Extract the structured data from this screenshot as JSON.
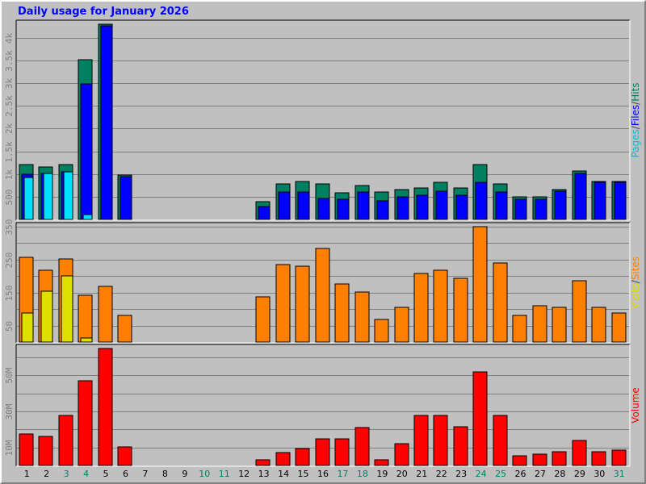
{
  "chart_data": {
    "type": "bar",
    "title": "Daily usage for January 2026",
    "days": [
      "1",
      "2",
      "3",
      "4",
      "5",
      "6",
      "7",
      "8",
      "9",
      "10",
      "11",
      "12",
      "13",
      "14",
      "15",
      "16",
      "17",
      "18",
      "19",
      "20",
      "21",
      "22",
      "23",
      "24",
      "25",
      "26",
      "27",
      "28",
      "29",
      "30",
      "31"
    ],
    "weekend_days": [
      "3",
      "4",
      "10",
      "11",
      "17",
      "18",
      "24",
      "25",
      "31"
    ],
    "panels": [
      {
        "id": "hits",
        "ylim": [
          0,
          4300
        ],
        "yticks": [
          500,
          1000,
          1500,
          2000,
          2500,
          3000,
          3500,
          4000
        ],
        "ytick_labels": [
          "500",
          "1k",
          "1.5k",
          "2k",
          "2.5k",
          "3k",
          "3.5k",
          "4k"
        ],
        "ylabel_parts": [
          {
            "text": "Pages",
            "color": "#00c0d0"
          },
          {
            "text": "/",
            "color": "#404040"
          },
          {
            "text": "Files",
            "color": "#0000ff"
          },
          {
            "text": "/",
            "color": "#404040"
          },
          {
            "text": "Hits",
            "color": "#008060"
          }
        ],
        "series": [
          {
            "name": "Hits",
            "color": "#008060",
            "values": [
              1200,
              1150,
              1200,
              3520,
              4300,
              980,
              0,
              0,
              0,
              0,
              0,
              0,
              390,
              790,
              840,
              780,
              590,
              750,
              600,
              650,
              700,
              820,
              700,
              1210,
              790,
              490,
              490,
              650,
              1070,
              840,
              840
            ]
          },
          {
            "name": "Files",
            "color": "#0000ff",
            "values": [
              1000,
              1020,
              1040,
              2980,
              4260,
              950,
              0,
              0,
              0,
              0,
              0,
              0,
              280,
              610,
              610,
              470,
              450,
              610,
              400,
              490,
              530,
              630,
              530,
              810,
              610,
              450,
              450,
              630,
              1020,
              810,
              810
            ]
          },
          {
            "name": "Pages",
            "color": "#00e0ff",
            "values": [
              920,
              1010,
              1040,
              100,
              0,
              0,
              0,
              0,
              0,
              0,
              0,
              0,
              0,
              0,
              0,
              0,
              0,
              0,
              0,
              0,
              0,
              0,
              0,
              0,
              0,
              0,
              0,
              0,
              0,
              0,
              0
            ]
          }
        ]
      },
      {
        "id": "visits",
        "ylim": [
          0,
          350
        ],
        "yticks": [
          50,
          100,
          150,
          200,
          250,
          300,
          350
        ],
        "ytick_labels": [
          "50",
          "",
          "150",
          "",
          "250",
          "",
          "350"
        ],
        "ylabel_parts": [
          {
            "text": "Visits",
            "color": "#e0e000"
          },
          {
            "text": "/",
            "color": "#404040"
          },
          {
            "text": "Sites",
            "color": "#ff8000"
          }
        ],
        "series": [
          {
            "name": "Sites",
            "color": "#ff8000",
            "values": [
              258,
              218,
              251,
              142,
              170,
              81,
              0,
              0,
              0,
              0,
              0,
              0,
              137,
              235,
              230,
              285,
              177,
              152,
              68,
              106,
              207,
              218,
              194,
              352,
              240,
              81,
              110,
              105,
              187,
              105,
              87
            ]
          },
          {
            "name": "Visits",
            "color": "#e0e000",
            "values": [
              88,
              155,
              200,
              12,
              0,
              0,
              0,
              0,
              0,
              0,
              0,
              0,
              0,
              0,
              0,
              0,
              0,
              0,
              0,
              0,
              0,
              0,
              0,
              0,
              0,
              0,
              0,
              0,
              0,
              0,
              0
            ]
          }
        ]
      },
      {
        "id": "volume",
        "ylim": [
          0,
          65
        ],
        "yticks": [
          10,
          20,
          30,
          40,
          50,
          60
        ],
        "ytick_labels": [
          "10M",
          "",
          "30M",
          "",
          "50M",
          ""
        ],
        "ylabel_parts": [
          {
            "text": "Volume",
            "color": "#ff0000"
          }
        ],
        "series": [
          {
            "name": "Volume",
            "color": "#ff0000",
            "values": [
              17.5,
              16,
              28,
              47,
              66,
              10.5,
              0,
              0,
              0,
              0,
              0,
              0,
              3,
              7,
              9.5,
              15,
              15,
              21,
              3,
              12,
              28,
              28,
              21.5,
              52,
              28,
              5.5,
              6.5,
              7.5,
              14,
              7.5,
              8.5
            ]
          }
        ]
      }
    ]
  }
}
